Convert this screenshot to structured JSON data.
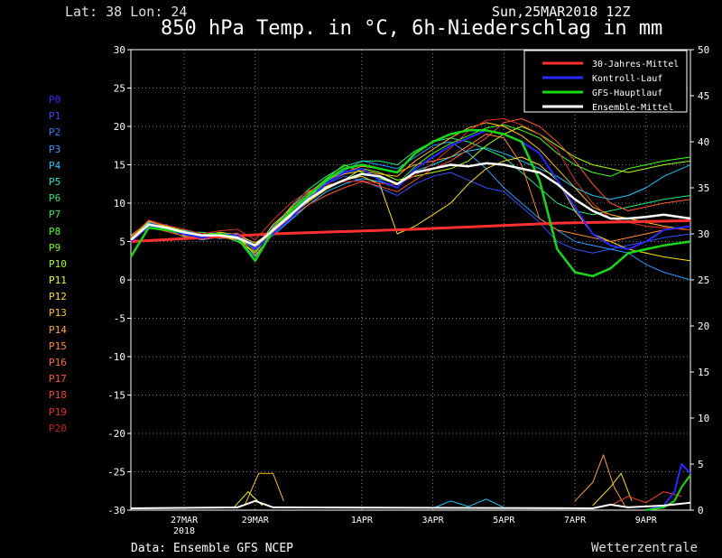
{
  "header": {
    "latlon": "Lat: 38 Lon: 24",
    "date": "Sun,25MAR2018 12Z",
    "title": "850 hPa Temp. in °C, 6h-Niederschlag in mm"
  },
  "footer": {
    "source": "Data: Ensemble GFS NCEP",
    "brand": "Wetterzentrale"
  },
  "members": [
    {
      "label": "P0",
      "color": "#3030ff"
    },
    {
      "label": "P1",
      "color": "#3050ff"
    },
    {
      "label": "P2",
      "color": "#2f78ff"
    },
    {
      "label": "P3",
      "color": "#2a9aff"
    },
    {
      "label": "P4",
      "color": "#1ec8ff"
    },
    {
      "label": "P5",
      "color": "#20e0c8"
    },
    {
      "label": "P6",
      "color": "#20e878"
    },
    {
      "label": "P7",
      "color": "#30f040"
    },
    {
      "label": "P8",
      "color": "#40ff20"
    },
    {
      "label": "P9",
      "color": "#70ff10"
    },
    {
      "label": "P10",
      "color": "#a8ff10"
    },
    {
      "label": "P11",
      "color": "#e8ff20"
    },
    {
      "label": "P12",
      "color": "#ffe020"
    },
    {
      "label": "P13",
      "color": "#ffc020"
    },
    {
      "label": "P14",
      "color": "#ffa030"
    },
    {
      "label": "P15",
      "color": "#ff8a30"
    },
    {
      "label": "P16",
      "color": "#ff7030"
    },
    {
      "label": "P17",
      "color": "#ff5830"
    },
    {
      "label": "P18",
      "color": "#ff4028"
    },
    {
      "label": "P19",
      "color": "#e83020"
    },
    {
      "label": "P20",
      "color": "#c81818"
    }
  ],
  "chart_data": {
    "type": "line",
    "title": "850 hPa Temp. in °C, 6h-Niederschlag in mm",
    "ylabel_left": "",
    "ylabel_right": "",
    "ylim_left": [
      -30,
      30
    ],
    "ylim_right": [
      0,
      50
    ],
    "yticks_left": [
      "30",
      "25",
      "20",
      "15",
      "10",
      "5",
      "0",
      "-5",
      "-10",
      "-15",
      "-20",
      "-25",
      "-30"
    ],
    "yticks_right": [
      "50",
      "45",
      "40",
      "35",
      "30",
      "25",
      "20",
      "15",
      "10",
      "5",
      "0"
    ],
    "xticks": [
      {
        "label": "27MAR",
        "sub": "2018",
        "day": 1.5
      },
      {
        "label": "29MAR",
        "sub": "",
        "day": 3.5
      },
      {
        "label": "1APR",
        "sub": "",
        "day": 6.5
      },
      {
        "label": "3APR",
        "sub": "",
        "day": 8.5
      },
      {
        "label": "5APR",
        "sub": "",
        "day": 10.5
      },
      {
        "label": "7APR",
        "sub": "",
        "day": 12.5
      },
      {
        "label": "9APR",
        "sub": "",
        "day": 14.5
      }
    ],
    "x_range_days": [
      0,
      15.75
    ],
    "grid": true,
    "legend_position": "top-right",
    "legend": [
      {
        "name": "30-Jahres-Mittel",
        "color": "#ff3030"
      },
      {
        "name": "Kontroll-Lauf",
        "color": "#2828ff"
      },
      {
        "name": "GFS-Hauptlauf",
        "color": "#18d818"
      },
      {
        "name": "Ensemble-Mittel",
        "color": "#ffffff"
      }
    ],
    "climate": {
      "days": [
        0,
        4,
        8,
        12,
        15.75
      ],
      "values": [
        5.0,
        6.0,
        6.6,
        7.4,
        7.7
      ]
    },
    "ensemble_mean": {
      "days": [
        0,
        0.5,
        1,
        1.5,
        2,
        2.5,
        3,
        3.5,
        4,
        4.5,
        5,
        5.5,
        6,
        6.5,
        7,
        7.5,
        8,
        8.5,
        9,
        9.5,
        10,
        10.5,
        11,
        11.5,
        12,
        12.5,
        13,
        13.5,
        14,
        14.5,
        15,
        15.75
      ],
      "values": [
        5.2,
        7.2,
        6.8,
        6.2,
        5.8,
        5.8,
        5.5,
        4.5,
        6.5,
        8.5,
        10.5,
        12.0,
        13.0,
        13.8,
        13.5,
        12.5,
        14.0,
        14.5,
        15.0,
        14.8,
        15.2,
        15.0,
        14.5,
        14.0,
        12.5,
        10.5,
        9.0,
        8.0,
        8.0,
        8.2,
        8.5,
        8.0
      ]
    },
    "control_run": {
      "days": [
        0,
        0.5,
        1,
        1.5,
        2,
        2.5,
        3,
        3.5,
        4,
        4.5,
        5,
        5.5,
        6,
        6.5,
        7,
        7.5,
        8,
        8.5,
        9,
        9.5,
        10,
        10.5,
        11,
        11.5,
        12,
        12.5,
        13,
        13.5,
        14,
        14.5,
        15,
        15.75
      ],
      "values": [
        5.0,
        7.0,
        6.5,
        6.0,
        5.5,
        6.0,
        5.8,
        4.0,
        6.0,
        8.0,
        10.5,
        12.5,
        14.0,
        14.5,
        13.0,
        12.0,
        14.5,
        16.0,
        17.5,
        18.5,
        19.5,
        19.0,
        18.0,
        16.5,
        13.0,
        9.5,
        6.0,
        4.5,
        4.0,
        5.0,
        6.5,
        7.0
      ]
    },
    "gfs_main": {
      "days": [
        0,
        0.5,
        1,
        1.5,
        2,
        2.5,
        3,
        3.5,
        4,
        4.5,
        5,
        5.5,
        6,
        6.5,
        7,
        7.5,
        8,
        8.5,
        9,
        9.5,
        10,
        10.5,
        11,
        11.5,
        12,
        12.5,
        13,
        13.5,
        14,
        14.5,
        15,
        15.75
      ],
      "values": [
        3.0,
        6.8,
        6.5,
        6.2,
        5.8,
        6.0,
        5.5,
        2.5,
        6.5,
        9.0,
        11.0,
        13.0,
        14.5,
        15.0,
        14.5,
        14.0,
        16.5,
        18.0,
        19.0,
        19.5,
        19.5,
        19.0,
        18.0,
        13.0,
        4.0,
        1.0,
        0.5,
        1.5,
        3.5,
        4.0,
        4.5,
        5.0
      ]
    },
    "members_temp": [
      {
        "member": "P1",
        "values": [
          5.5,
          7.5,
          6.8,
          6.0,
          5.5,
          5.8,
          6.0,
          4.5,
          7.0,
          9.0,
          11.5,
          12.5,
          13.5,
          13.0,
          12.0,
          11.0,
          12.5,
          13.5,
          14.0,
          13.0,
          12.0,
          11.5,
          9.5,
          7.5,
          5.0,
          4.0,
          3.5,
          4.0,
          4.5,
          5.0,
          5.5,
          6.0
        ]
      },
      {
        "member": "P3",
        "values": [
          5.0,
          7.0,
          7.2,
          5.8,
          5.2,
          5.6,
          5.2,
          3.0,
          6.2,
          8.6,
          10.8,
          12.8,
          14.2,
          15.5,
          15.0,
          14.5,
          16.0,
          17.5,
          18.0,
          16.5,
          14.5,
          12.0,
          10.0,
          8.0,
          6.5,
          5.0,
          4.5,
          4.0,
          3.5,
          2.0,
          1.0,
          0.0
        ]
      },
      {
        "member": "P4",
        "values": [
          5.8,
          7.4,
          6.4,
          6.5,
          5.8,
          5.4,
          5.6,
          4.2,
          5.8,
          7.8,
          9.8,
          11.5,
          12.5,
          13.2,
          12.8,
          12.0,
          14.2,
          15.0,
          16.0,
          16.8,
          17.2,
          16.5,
          15.5,
          14.5,
          13.5,
          12.0,
          11.0,
          10.5,
          11.0,
          12.0,
          13.5,
          15.0
        ]
      },
      {
        "member": "P6",
        "values": [
          5.2,
          6.8,
          7.0,
          6.2,
          6.2,
          6.0,
          5.8,
          3.8,
          6.8,
          9.5,
          11.8,
          13.5,
          14.8,
          15.5,
          15.5,
          15.0,
          16.8,
          18.0,
          18.5,
          18.0,
          17.0,
          16.0,
          14.0,
          12.0,
          10.0,
          9.0,
          8.5,
          9.0,
          9.5,
          10.0,
          10.5,
          11.0
        ]
      },
      {
        "member": "P8",
        "values": [
          5.6,
          7.2,
          6.6,
          5.6,
          5.6,
          5.8,
          5.0,
          3.5,
          6.6,
          8.8,
          11.2,
          13.2,
          15.0,
          14.0,
          13.2,
          12.5,
          14.8,
          16.5,
          17.8,
          18.8,
          19.8,
          20.2,
          19.5,
          18.5,
          16.5,
          15.0,
          14.0,
          13.5,
          14.5,
          15.0,
          15.5,
          16.0
        ]
      },
      {
        "member": "P10",
        "values": [
          5.4,
          7.6,
          7.0,
          6.4,
          5.4,
          5.6,
          5.4,
          4.0,
          7.2,
          9.2,
          11.0,
          12.2,
          13.0,
          14.5,
          14.0,
          13.0,
          13.5,
          14.0,
          14.5,
          15.5,
          17.5,
          19.0,
          20.0,
          19.0,
          17.5,
          16.0,
          15.0,
          14.5,
          14.0,
          14.5,
          15.0,
          15.5
        ]
      },
      {
        "member": "P12",
        "values": [
          5.1,
          7.3,
          6.9,
          6.1,
          5.7,
          6.2,
          5.9,
          4.8,
          6.4,
          8.2,
          10.2,
          11.8,
          13.0,
          13.5,
          12.5,
          6.0,
          7.0,
          8.5,
          10.0,
          12.5,
          14.5,
          15.5,
          16.0,
          15.0,
          13.0,
          9.0,
          6.0,
          5.0,
          4.0,
          3.5,
          3.0,
          2.5
        ]
      },
      {
        "member": "P13",
        "values": [
          5.3,
          7.1,
          6.7,
          5.9,
          5.9,
          6.1,
          5.7,
          3.2,
          6.0,
          8.4,
          10.6,
          12.6,
          13.8,
          14.2,
          13.8,
          13.5,
          15.5,
          17.0,
          18.5,
          19.8,
          20.5,
          20.0,
          18.8,
          17.0,
          14.5,
          12.0,
          9.5,
          8.5,
          8.0,
          7.5,
          7.0,
          6.5
        ]
      },
      {
        "member": "P15",
        "values": [
          5.7,
          7.7,
          6.9,
          6.3,
          5.9,
          5.5,
          5.3,
          3.6,
          6.8,
          9.4,
          11.4,
          13.0,
          14.0,
          14.8,
          14.5,
          14.0,
          15.0,
          15.5,
          16.0,
          17.5,
          19.0,
          18.5,
          15.0,
          8.0,
          6.5,
          6.0,
          5.5,
          5.0,
          5.5,
          6.0,
          6.5,
          7.0
        ]
      },
      {
        "member": "P17",
        "values": [
          4.9,
          6.9,
          6.3,
          5.7,
          5.3,
          5.7,
          6.1,
          4.1,
          6.2,
          8.1,
          9.8,
          11.0,
          12.0,
          12.8,
          12.2,
          11.5,
          13.0,
          14.5,
          15.5,
          17.0,
          18.5,
          20.5,
          21.0,
          20.0,
          18.0,
          15.5,
          12.5,
          10.0,
          9.0,
          9.5,
          10.0,
          10.5
        ]
      },
      {
        "member": "P19",
        "values": [
          5.5,
          7.8,
          7.1,
          6.6,
          6.0,
          6.4,
          6.6,
          5.2,
          7.8,
          10.0,
          11.6,
          12.4,
          12.8,
          12.9,
          12.6,
          12.4,
          13.6,
          15.2,
          17.2,
          19.4,
          20.8,
          21.0,
          20.2,
          19.0,
          17.0,
          13.0,
          10.0,
          8.0,
          7.5,
          7.0,
          6.8,
          6.5
        ]
      }
    ],
    "precip_members": [
      {
        "member": "P13",
        "days": [
          3.2,
          3.6,
          4.0,
          4.3
        ],
        "values": [
          0.5,
          4.0,
          4.0,
          1.0
        ]
      },
      {
        "member": "P11",
        "days": [
          2.9,
          3.3,
          3.7
        ],
        "values": [
          0.3,
          2.0,
          0.5
        ]
      },
      {
        "member": "P14",
        "days": [
          12.5,
          13.0,
          13.3,
          13.6,
          13.9
        ],
        "values": [
          1.0,
          3.0,
          6.0,
          2.5,
          0.5
        ]
      },
      {
        "member": "P12",
        "days": [
          13.0,
          13.5,
          13.8,
          14.1
        ],
        "values": [
          0.5,
          2.5,
          4.0,
          1.0
        ]
      },
      {
        "member": "P4",
        "days": [
          8.5,
          9.0,
          9.5,
          10.0,
          10.5
        ],
        "values": [
          0.2,
          1.0,
          0.4,
          1.2,
          0.3
        ]
      },
      {
        "member": "P18",
        "days": [
          13.5,
          14.0,
          14.5,
          15.0,
          15.5
        ],
        "values": [
          0.5,
          1.5,
          0.8,
          2.0,
          1.5
        ]
      }
    ],
    "precip_control": {
      "days": [
        14.5,
        15.0,
        15.3,
        15.5,
        15.75
      ],
      "values": [
        0,
        0.5,
        2.0,
        5.0,
        4.0
      ]
    },
    "precip_gfs": {
      "days": [
        14.5,
        15.0,
        15.3,
        15.5,
        15.75
      ],
      "values": [
        0,
        0.3,
        1.0,
        2.5,
        3.8
      ]
    },
    "precip_mean": {
      "days": [
        0,
        3,
        3.5,
        4,
        13,
        13.5,
        14,
        15,
        15.75
      ],
      "values": [
        0.2,
        0.3,
        1.0,
        0.3,
        0.2,
        0.6,
        0.3,
        0.5,
        0.8
      ]
    }
  }
}
